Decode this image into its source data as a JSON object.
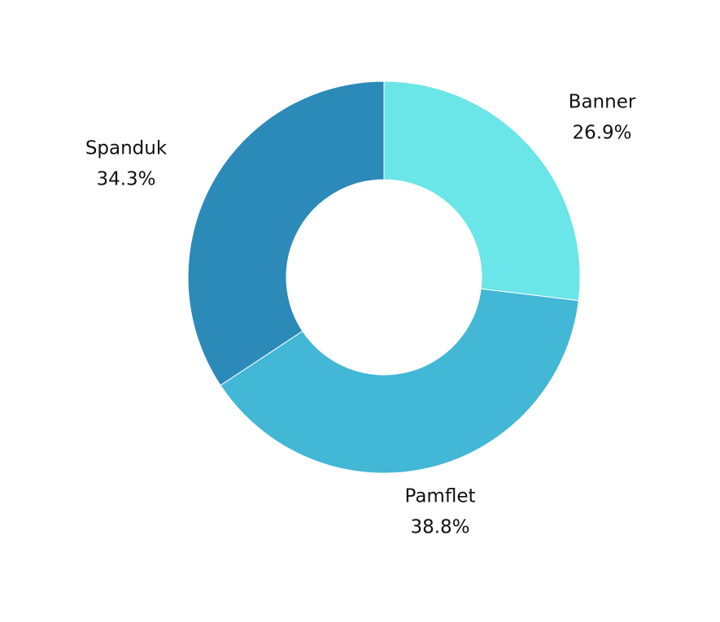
{
  "chart_data": {
    "type": "pie",
    "variant": "donut",
    "title": "",
    "start_angle_deg": 0,
    "direction": "clockwise",
    "legend": "none",
    "slices": [
      {
        "label": "Banner",
        "value": 26.9,
        "value_label": "26.9%",
        "color": "#6AE5E8"
      },
      {
        "label": "Pamflet",
        "value": 38.8,
        "value_label": "38.8%",
        "color": "#42B7D6"
      },
      {
        "label": "Spanduk",
        "value": 34.3,
        "value_label": "34.3%",
        "color": "#2C8AB9"
      }
    ]
  }
}
